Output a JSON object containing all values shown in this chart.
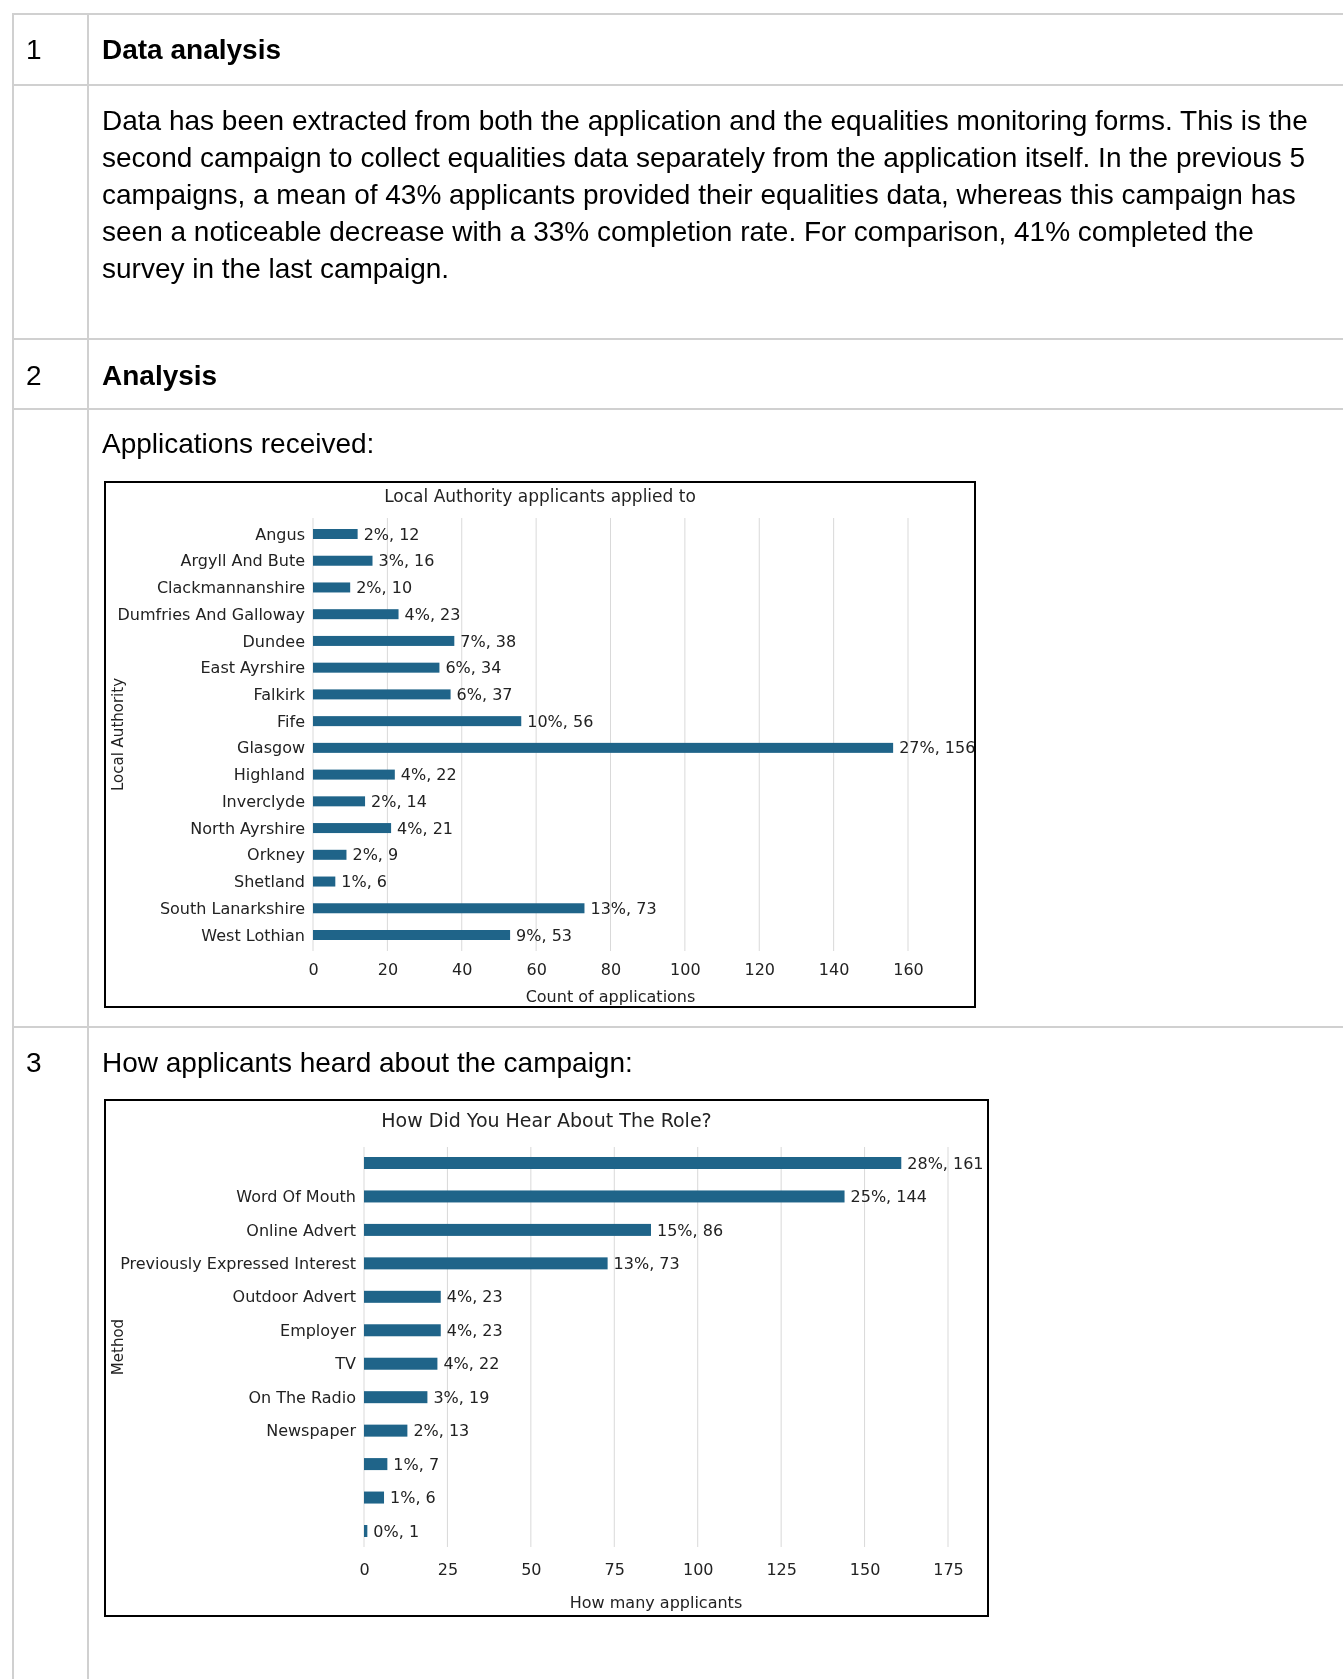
{
  "chart_data": [
    {
      "type": "bar",
      "orientation": "horizontal",
      "title": "Local Authority applicants applied to",
      "xlabel": "Count of applications",
      "ylabel": "Local Authority",
      "categories": [
        "Angus",
        "Argyll And Bute",
        "Clackmannanshire",
        "Dumfries And Galloway",
        "Dundee",
        "East Ayrshire",
        "Falkirk",
        "Fife",
        "Glasgow",
        "Highland",
        "Inverclyde",
        "North Ayrshire",
        "Orkney",
        "Shetland",
        "South Lanarkshire",
        "West Lothian"
      ],
      "values": [
        12,
        16,
        10,
        23,
        38,
        34,
        37,
        56,
        156,
        22,
        14,
        21,
        9,
        6,
        73,
        53
      ],
      "value_labels": [
        "2%, 12",
        "3%, 16",
        "2%, 10",
        "4%, 23",
        "7%, 38",
        "6%, 34",
        "6%, 37",
        "10%, 56",
        "27%, 156",
        "4%, 22",
        "2%, 14",
        "4%, 21",
        "2%, 9",
        "1%, 6",
        "13%, 73",
        "9%, 53"
      ],
      "color": "#1f6489",
      "xlim": [
        0,
        160
      ],
      "xticks": [
        0,
        20,
        40,
        60,
        80,
        100,
        120,
        140,
        160
      ],
      "grid": "x",
      "annotations": [
        "1",
        "Data analysis",
        "Data has been extracted from both the application and the equalities monitoring forms. This is the second campaign to collect equalities data separately from the application itself.  In the previous 5 campaigns, a mean of 43% applicants provided their equalities data, whereas this campaign has seen a noticeable decrease with a 33% completion rate.  For comparison, 41% completed the survey in the last campaign.",
        "2",
        "Analysis",
        "Applications received:"
      ]
    },
    {
      "type": "bar",
      "orientation": "horizontal",
      "title": "How Did You Hear About The Role?",
      "xlabel": "How many applicants",
      "ylabel": "Method",
      "categories": [
        null,
        "Word Of Mouth",
        "Online Advert",
        "Previously Expressed Interest",
        "Outdoor Advert",
        "Employer",
        "TV",
        "On The Radio",
        "Newspaper",
        null,
        null,
        null
      ],
      "values": [
        161,
        144,
        86,
        73,
        23,
        23,
        22,
        19,
        13,
        7,
        6,
        1
      ],
      "value_labels": [
        "28%, 161",
        "25%, 144",
        "15%, 86",
        "13%, 73",
        "4%, 23",
        "4%, 23",
        "4%, 22",
        "3%, 19",
        "2%, 13",
        "1%, 7",
        "1%, 6",
        "0%, 1"
      ],
      "color": "#1f6489",
      "xlim": [
        0,
        175
      ],
      "xticks": [
        0,
        25,
        50,
        75,
        100,
        125,
        150,
        175
      ],
      "grid": "x",
      "annotations": [
        "3",
        "How applicants heard about the campaign:"
      ]
    }
  ]
}
